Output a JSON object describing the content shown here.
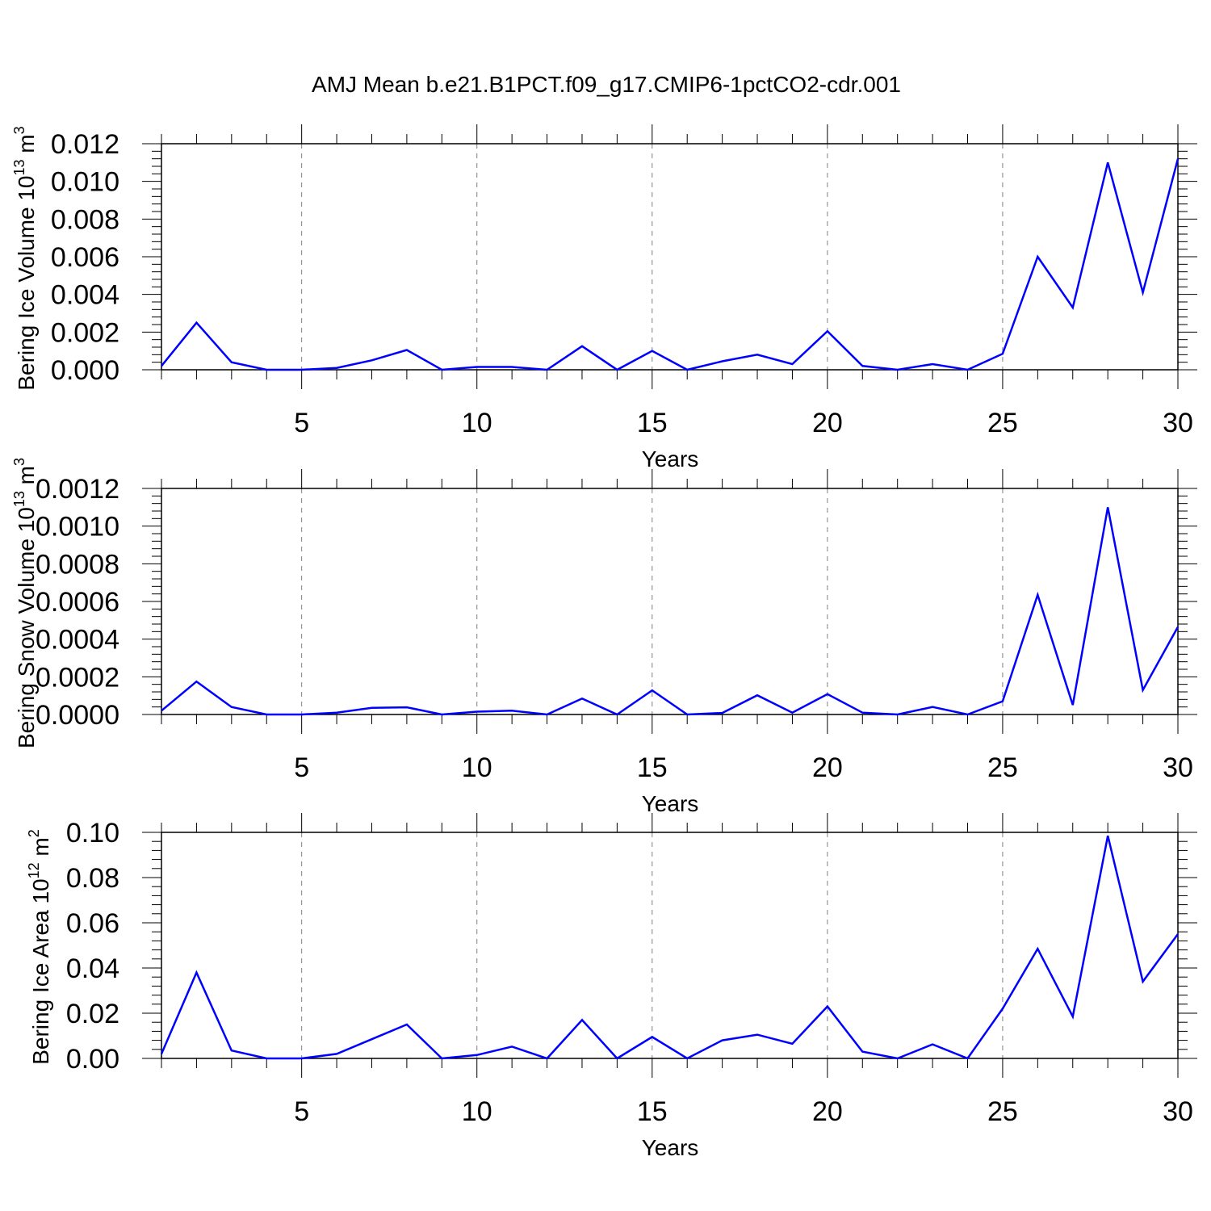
{
  "title": "AMJ Mean b.e21.B1PCT.f09_g17.CMIP6-1pctCO2-cdr.001",
  "colors": {
    "line": "#0000ff",
    "axis": "#000000",
    "grid": "#808080"
  },
  "chart_data": [
    {
      "type": "line",
      "title": "",
      "xlabel": "Years",
      "ylabel": {
        "prefix": "Bering Ice Volume 10",
        "exp": "13",
        "unit": " m",
        "unit_exp": "3"
      },
      "xlim": [
        1,
        30
      ],
      "ylim": [
        0,
        0.012
      ],
      "x_ticks": [
        "5",
        "10",
        "15",
        "20",
        "25",
        "30"
      ],
      "y_ticks": [
        "0.000",
        "0.002",
        "0.004",
        "0.006",
        "0.008",
        "0.010",
        "0.012"
      ],
      "grid": "vertical dashed at major x ticks",
      "x": [
        1,
        2,
        3,
        4,
        5,
        6,
        7,
        8,
        9,
        10,
        11,
        12,
        13,
        14,
        15,
        16,
        17,
        18,
        19,
        20,
        21,
        22,
        23,
        24,
        25,
        26,
        27,
        28,
        29,
        30
      ],
      "values": [
        0.0002,
        0.0025,
        0.0004,
        0.0,
        0.0,
        0.0001,
        0.0005,
        0.00105,
        0.0,
        0.00015,
        0.00015,
        0.0,
        0.00125,
        0.0,
        0.001,
        0.0,
        0.00045,
        0.0008,
        0.0003,
        0.00205,
        0.0002,
        0.0,
        0.0003,
        0.0,
        0.00085,
        0.006,
        0.0033,
        0.011,
        0.0041,
        0.0112
      ]
    },
    {
      "type": "line",
      "title": "",
      "xlabel": "Years",
      "ylabel": {
        "prefix": "Bering Snow Volume 10",
        "exp": "13",
        "unit": " m",
        "unit_exp": "3"
      },
      "xlim": [
        1,
        30
      ],
      "ylim": [
        0,
        0.0012
      ],
      "x_ticks": [
        "5",
        "10",
        "15",
        "20",
        "25",
        "30"
      ],
      "y_ticks": [
        "0.0000",
        "0.0002",
        "0.0004",
        "0.0006",
        "0.0008",
        "0.0010",
        "0.0012"
      ],
      "grid": "vertical dashed at major x ticks",
      "x": [
        1,
        2,
        3,
        4,
        5,
        6,
        7,
        8,
        9,
        10,
        11,
        12,
        13,
        14,
        15,
        16,
        17,
        18,
        19,
        20,
        21,
        22,
        23,
        24,
        25,
        26,
        27,
        28,
        29,
        30
      ],
      "values": [
        2e-05,
        0.000175,
        4e-05,
        0.0,
        0.0,
        1e-05,
        3.5e-05,
        3.8e-05,
        0.0,
        1.5e-05,
        2e-05,
        0.0,
        8.5e-05,
        0.0,
        0.000128,
        0.0,
        8e-06,
        0.000102,
        1e-05,
        0.000108,
        1e-05,
        0.0,
        4e-05,
        0.0,
        7e-05,
        0.000635,
        5e-05,
        0.0011,
        0.00013,
        0.000465
      ]
    },
    {
      "type": "line",
      "title": "",
      "xlabel": "Years",
      "ylabel": {
        "prefix": "Bering Ice Area 10",
        "exp": "12",
        "unit": " m",
        "unit_exp": "2"
      },
      "xlim": [
        1,
        30
      ],
      "ylim": [
        0,
        0.1
      ],
      "x_ticks": [
        "5",
        "10",
        "15",
        "20",
        "25",
        "30"
      ],
      "y_ticks": [
        "0.00",
        "0.02",
        "0.04",
        "0.06",
        "0.08",
        "0.10"
      ],
      "grid": "vertical dashed at major x ticks",
      "x": [
        1,
        2,
        3,
        4,
        5,
        6,
        7,
        8,
        9,
        10,
        11,
        12,
        13,
        14,
        15,
        16,
        17,
        18,
        19,
        20,
        21,
        22,
        23,
        24,
        25,
        26,
        27,
        28,
        29,
        30
      ],
      "values": [
        0.002,
        0.038,
        0.0035,
        0.0,
        0.0,
        0.002,
        0.0085,
        0.015,
        0.0,
        0.0015,
        0.0052,
        0.0,
        0.017,
        0.0,
        0.0095,
        0.0,
        0.008,
        0.0105,
        0.0065,
        0.023,
        0.003,
        0.0,
        0.0062,
        0.0,
        0.022,
        0.0485,
        0.0185,
        0.0985,
        0.034,
        0.055
      ]
    }
  ]
}
